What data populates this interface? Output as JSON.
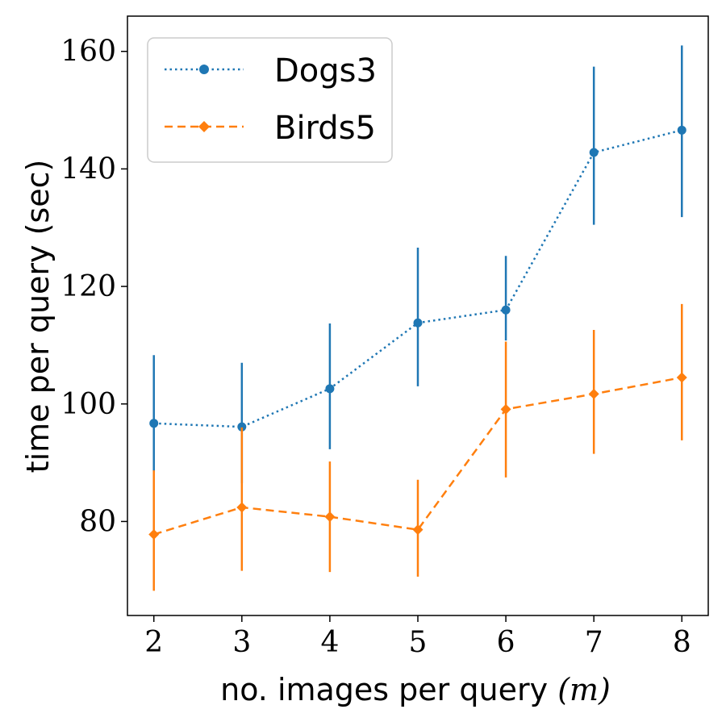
{
  "chart_data": {
    "type": "line",
    "xlabel_text": "no. images per query",
    "xlabel_var": "(m)",
    "ylabel": "time per query (sec)",
    "x": [
      2,
      3,
      4,
      5,
      6,
      7,
      8
    ],
    "xlim": [
      1.7,
      8.3
    ],
    "ylim": [
      64,
      166
    ],
    "xticks": [
      2,
      3,
      4,
      5,
      6,
      7,
      8
    ],
    "yticks": [
      80,
      100,
      120,
      140,
      160
    ],
    "grid": false,
    "legend_position": "top-left",
    "series": [
      {
        "name": "Dogs3",
        "color": "#1f77b4",
        "line_style": "dotted",
        "marker": "circle",
        "values": [
          96.7,
          96.1,
          102.6,
          113.8,
          116.0,
          142.8,
          146.6
        ],
        "error_low": [
          88.5,
          86.5,
          92.3,
          103.0,
          110.8,
          130.5,
          131.8
        ],
        "error_high": [
          108.3,
          107.0,
          113.7,
          126.6,
          125.2,
          157.4,
          161.0
        ]
      },
      {
        "name": "Birds5",
        "color": "#ff7f0e",
        "line_style": "dashed",
        "marker": "diamond",
        "values": [
          77.8,
          82.4,
          80.8,
          78.6,
          99.1,
          101.7,
          104.5
        ],
        "error_low": [
          68.2,
          71.6,
          71.4,
          70.6,
          87.5,
          91.5,
          93.8
        ],
        "error_high": [
          88.7,
          96.0,
          90.2,
          87.1,
          110.6,
          112.6,
          117.0
        ]
      }
    ]
  }
}
